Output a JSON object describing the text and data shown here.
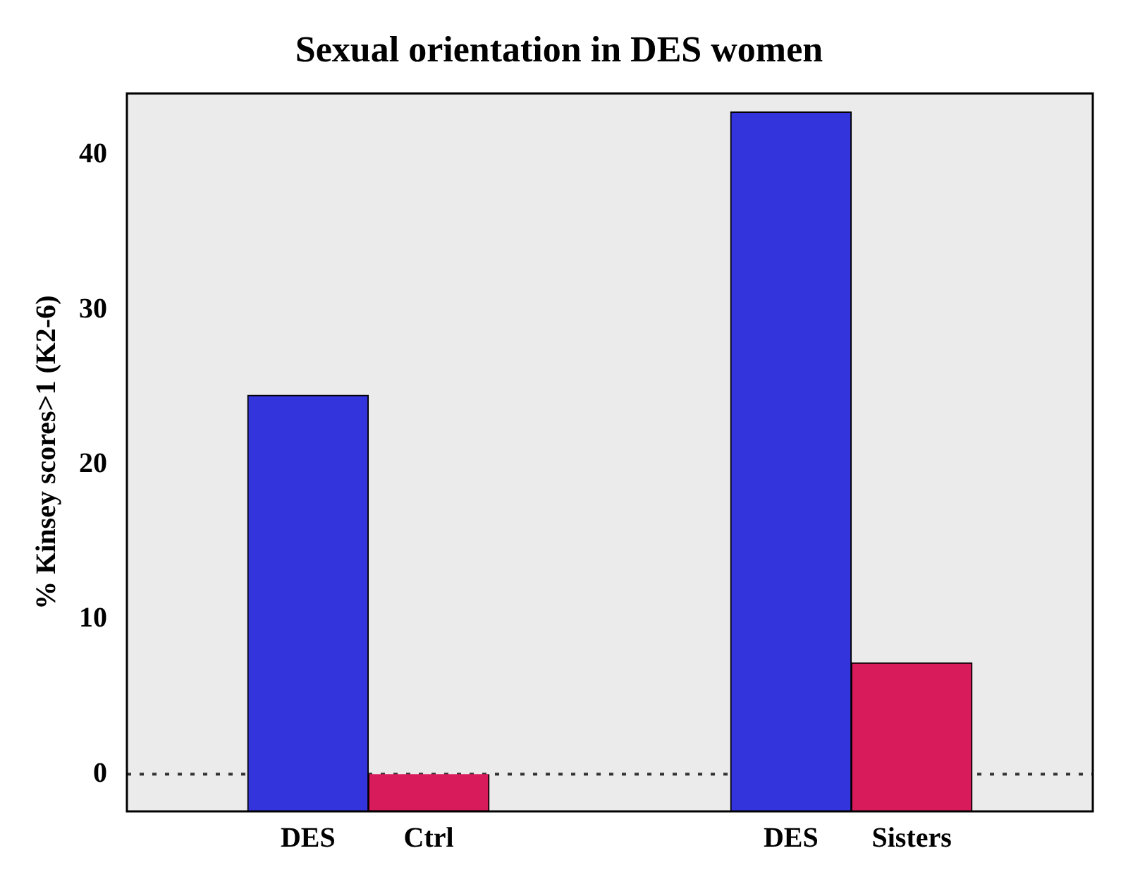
{
  "chart_data": {
    "type": "bar",
    "title": "Sexual orientation in DES women",
    "ylabel": "% Kinsey scores>1 (K2-6)",
    "categories": [
      null,
      "DES",
      "Ctrl",
      null,
      null,
      "DES",
      "Sisters",
      null
    ],
    "values": [
      null,
      26.9,
      2.4,
      null,
      null,
      45.2,
      9.6,
      null
    ],
    "base": [
      null,
      -2.4,
      -2.4,
      null,
      null,
      -2.4,
      -2.4,
      null
    ],
    "colors": [
      "#3434dc",
      "#3434dc",
      "#d81b5a",
      "#3434dc",
      "#3434dc",
      "#3434dc",
      "#d81b5a",
      "#3434dc"
    ],
    "ylim": [
      -2.4,
      44
    ],
    "yticks": [
      0,
      10,
      20,
      30,
      40
    ],
    "grid": false,
    "legend": false,
    "ref_lines": [
      {
        "axis": "y",
        "value": 0,
        "label": null,
        "color": "#333333",
        "line_style": "dotted"
      }
    ]
  }
}
